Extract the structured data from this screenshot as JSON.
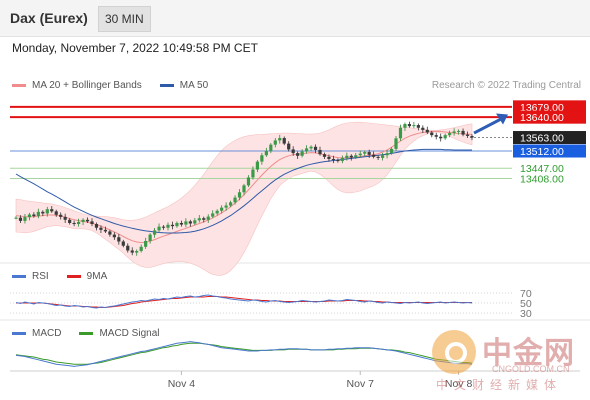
{
  "header": {
    "title": "Dax (Eurex)",
    "timeframe": "30 MIN"
  },
  "datetime": "Monday, November 7, 2022 10:49:58 PM CET",
  "credit": "Research © 2022 Trading Central",
  "legend_main": [
    {
      "label": "MA 20 + Bollinger Bands",
      "color": "#f08c8c"
    },
    {
      "label": "MA 50",
      "color": "#2f5aa8"
    }
  ],
  "legend_rsi": [
    {
      "label": "RSI",
      "color": "#4a78d0"
    },
    {
      "label": "9MA",
      "color": "#e02020"
    }
  ],
  "legend_macd": [
    {
      "label": "MACD",
      "color": "#4a78d0"
    },
    {
      "label": "MACD Signal",
      "color": "#3a9a2a"
    }
  ],
  "watermark": {
    "cn": "中金网",
    "url": "CNGOLD.COM.CN",
    "sub": "中文财经新媒体"
  },
  "chart_data": [
    {
      "type": "candlestick",
      "ylim": [
        13100,
        13720
      ],
      "x_ticks": [
        "Nov 4",
        "Nov 7",
        "Nov 8"
      ],
      "price": [
        13260,
        13248,
        13262,
        13272,
        13266,
        13282,
        13276,
        13292,
        13284,
        13271,
        13263,
        13252,
        13240,
        13236,
        13244,
        13252,
        13246,
        13236,
        13222,
        13214,
        13208,
        13196,
        13186,
        13170,
        13154,
        13136,
        13128,
        13134,
        13150,
        13172,
        13196,
        13212,
        13226,
        13222,
        13233,
        13228,
        13240,
        13234,
        13246,
        13238,
        13250,
        13258,
        13252,
        13264,
        13276,
        13286,
        13298,
        13306,
        13318,
        13336,
        13356,
        13382,
        13412,
        13442,
        13472,
        13496,
        13512,
        13536,
        13552,
        13561,
        13540,
        13518,
        13504,
        13494,
        13510,
        13522,
        13528,
        13516,
        13500,
        13490,
        13482,
        13478,
        13474,
        13486,
        13494,
        13488,
        13496,
        13502,
        13508,
        13498,
        13490,
        13486,
        13496,
        13504,
        13520,
        13560,
        13600,
        13614,
        13606,
        13610,
        13600,
        13592,
        13582,
        13572,
        13566,
        13560,
        13572,
        13580,
        13586,
        13588,
        13574,
        13569,
        13563
      ],
      "ma20": [
        13268,
        13266,
        13264,
        13263,
        13264,
        13266,
        13268,
        13270,
        13270,
        13269,
        13266,
        13262,
        13257,
        13252,
        13249,
        13246,
        13243,
        13239,
        13234,
        13228,
        13221,
        13214,
        13206,
        13198,
        13189,
        13180,
        13173,
        13168,
        13166,
        13167,
        13171,
        13177,
        13184,
        13190,
        13196,
        13202,
        13208,
        13214,
        13220,
        13226,
        13232,
        13238,
        13244,
        13251,
        13259,
        13268,
        13278,
        13289,
        13301,
        13315,
        13330,
        13347,
        13365,
        13384,
        13403,
        13421,
        13438,
        13454,
        13468,
        13480,
        13488,
        13494,
        13498,
        13500,
        13502,
        13504,
        13506,
        13505,
        13502,
        13498,
        13494,
        13490,
        13487,
        13486,
        13486,
        13487,
        13489,
        13491,
        13494,
        13496,
        13498,
        13502,
        13508,
        13516,
        13526,
        13538,
        13550,
        13560,
        13568,
        13574,
        13579,
        13582,
        13584,
        13586,
        13587,
        13586,
        13584,
        13582,
        13580,
        13578,
        13577,
        13576,
        13575
      ],
      "bb_upper": [
        13330,
        13328,
        13325,
        13322,
        13320,
        13318,
        13316,
        13314,
        13312,
        13308,
        13304,
        13298,
        13292,
        13286,
        13280,
        13274,
        13270,
        13267,
        13266,
        13265,
        13264,
        13262,
        13260,
        13256,
        13252,
        13250,
        13250,
        13252,
        13256,
        13262,
        13270,
        13278,
        13286,
        13294,
        13302,
        13312,
        13322,
        13334,
        13348,
        13364,
        13382,
        13402,
        13424,
        13448,
        13472,
        13494,
        13514,
        13530,
        13542,
        13552,
        13560,
        13566,
        13570,
        13572,
        13574,
        13575,
        13576,
        13577,
        13578,
        13579,
        13580,
        13580,
        13579,
        13578,
        13577,
        13576,
        13576,
        13577,
        13580,
        13585,
        13592,
        13600,
        13608,
        13614,
        13618,
        13620,
        13621,
        13621,
        13620,
        13618,
        13616,
        13614,
        13612,
        13610,
        13608,
        13606,
        13604,
        13602,
        13600,
        13598,
        13596,
        13594,
        13592,
        13590,
        13590,
        13592,
        13594,
        13597,
        13600,
        13604,
        13608,
        13612,
        13615
      ],
      "bb_lower": [
        13206,
        13204,
        13203,
        13204,
        13208,
        13214,
        13220,
        13226,
        13228,
        13230,
        13228,
        13226,
        13222,
        13218,
        13218,
        13218,
        13216,
        13211,
        13202,
        13191,
        13178,
        13166,
        13152,
        13140,
        13126,
        13110,
        13096,
        13084,
        13076,
        13072,
        13072,
        13076,
        13082,
        13086,
        13090,
        13092,
        13094,
        13094,
        13092,
        13088,
        13082,
        13074,
        13064,
        13054,
        13046,
        13042,
        13042,
        13048,
        13060,
        13078,
        13100,
        13128,
        13160,
        13196,
        13232,
        13267,
        13300,
        13331,
        13358,
        13381,
        13396,
        13408,
        13417,
        13422,
        13427,
        13432,
        13436,
        13433,
        13424,
        13411,
        13396,
        13380,
        13366,
        13358,
        13354,
        13354,
        13357,
        13361,
        13368,
        13374,
        13380,
        13390,
        13404,
        13422,
        13444,
        13470,
        13496,
        13518,
        13536,
        13550,
        13562,
        13570,
        13576,
        13582,
        13584,
        13580,
        13574,
        13567,
        13560,
        13552,
        13546,
        13540,
        13535
      ],
      "ma50": [
        13425,
        13415,
        13406,
        13397,
        13388,
        13378,
        13368,
        13358,
        13349,
        13340,
        13330,
        13320,
        13310,
        13300,
        13292,
        13284,
        13276,
        13269,
        13262,
        13256,
        13250,
        13244,
        13238,
        13233,
        13228,
        13224,
        13220,
        13216,
        13213,
        13210,
        13208,
        13206,
        13204,
        13203,
        13202,
        13202,
        13202,
        13203,
        13204,
        13206,
        13209,
        13213,
        13218,
        13224,
        13231,
        13239,
        13248,
        13258,
        13268,
        13280,
        13292,
        13305,
        13319,
        13333,
        13348,
        13362,
        13376,
        13390,
        13403,
        13414,
        13424,
        13432,
        13440,
        13446,
        13452,
        13458,
        13462,
        13466,
        13469,
        13472,
        13474,
        13476,
        13478,
        13480,
        13482,
        13484,
        13486,
        13488,
        13490,
        13492,
        13494,
        13496,
        13498,
        13500,
        13503,
        13506,
        13509,
        13512,
        13514,
        13516,
        13517,
        13518,
        13518,
        13518,
        13518,
        13518,
        13517,
        13517,
        13516,
        13516,
        13516,
        13516,
        13516
      ],
      "levels": [
        {
          "value": 13679.0,
          "label": "13679.00",
          "kind": "resistance",
          "color": "#e31313"
        },
        {
          "value": 13640.0,
          "label": "13640.00",
          "kind": "resistance",
          "color": "#e31313"
        },
        {
          "value": 13563.0,
          "label": "13563.00",
          "kind": "last",
          "color": "#222222"
        },
        {
          "value": 13512.0,
          "label": "13512.00",
          "kind": "pivot",
          "color": "#1a5fe0"
        },
        {
          "value": 13447.0,
          "label": "13447.00",
          "kind": "support",
          "color": "#2e9e2e"
        },
        {
          "value": 13408.0,
          "label": "13408.00",
          "kind": "support",
          "color": "#2e9e2e"
        }
      ],
      "forecast_arrow": {
        "from": 13580,
        "to": 13650,
        "direction": "up"
      }
    },
    {
      "type": "line",
      "name": "RSI",
      "ylim": [
        20,
        80
      ],
      "y_ticks": [
        "70",
        "50",
        "30"
      ],
      "rsi": [
        51,
        49,
        52,
        50,
        48,
        51,
        50,
        49,
        47,
        45,
        46,
        44,
        43,
        45,
        44,
        42,
        43,
        41,
        40,
        42,
        41,
        43,
        44,
        46,
        48,
        50,
        52,
        53,
        55,
        54,
        56,
        58,
        57,
        59,
        58,
        60,
        62,
        61,
        63,
        64,
        62,
        63,
        65,
        66,
        64,
        63,
        61,
        60,
        58,
        57,
        56,
        55,
        54,
        56,
        55,
        53,
        52,
        54,
        55,
        53,
        52,
        51,
        52,
        53,
        55,
        54,
        53,
        52,
        53,
        54,
        56,
        55,
        54,
        55,
        57,
        56,
        55,
        53,
        52,
        54,
        53,
        51,
        50,
        52,
        51,
        50,
        49,
        51,
        50,
        51,
        52,
        50,
        49,
        50,
        51,
        52,
        50,
        51,
        52,
        51,
        50,
        51,
        50
      ],
      "ma9": [
        50,
        50,
        50,
        50,
        50,
        50,
        50,
        49,
        48,
        47,
        46,
        45,
        44,
        44,
        44,
        43,
        43,
        42,
        42,
        41,
        41,
        42,
        43,
        44,
        45,
        47,
        49,
        50,
        52,
        53,
        54,
        55,
        56,
        57,
        58,
        59,
        59,
        60,
        61,
        62,
        62,
        62,
        62,
        63,
        63,
        63,
        62,
        62,
        61,
        60,
        59,
        58,
        57,
        56,
        56,
        55,
        55,
        54,
        54,
        54,
        53,
        53,
        53,
        53,
        53,
        53,
        53,
        53,
        53,
        53,
        54,
        54,
        54,
        54,
        55,
        55,
        55,
        55,
        54,
        54,
        53,
        53,
        52,
        52,
        51,
        51,
        51,
        51,
        51,
        51,
        51,
        51,
        51,
        51,
        51,
        51,
        51,
        51,
        51,
        51,
        51,
        51,
        51
      ]
    },
    {
      "type": "line",
      "name": "MACD",
      "macd": [
        -2,
        -3,
        -4,
        -6,
        -8,
        -10,
        -12,
        -14,
        -16,
        -18,
        -19,
        -20,
        -21,
        -22,
        -21,
        -20,
        -19,
        -17,
        -15,
        -13,
        -11,
        -9,
        -7,
        -5,
        -3,
        -1,
        1,
        3,
        5,
        6,
        8,
        10,
        12,
        14,
        16,
        18,
        20,
        21,
        22,
        23,
        22,
        21,
        19,
        18,
        16,
        14,
        12,
        11,
        10,
        9,
        8,
        7,
        6,
        6,
        6,
        7,
        7,
        8,
        8,
        9,
        9,
        10,
        10,
        10,
        9,
        9,
        8,
        8,
        8,
        8,
        9,
        9,
        10,
        10,
        11,
        11,
        12,
        12,
        12,
        12,
        11,
        10,
        9,
        8,
        7,
        6,
        4,
        2,
        0,
        -2,
        -4,
        -6,
        -8,
        -10,
        -12,
        -13,
        -14,
        -15,
        -16,
        -17,
        -17,
        -17,
        -18
      ],
      "signal": [
        -1,
        -2,
        -3,
        -4,
        -5,
        -7,
        -9,
        -10,
        -12,
        -14,
        -15,
        -16,
        -17,
        -18,
        -18,
        -18,
        -18,
        -17,
        -16,
        -15,
        -13,
        -11,
        -9,
        -7,
        -5,
        -3,
        -1,
        1,
        3,
        4,
        6,
        8,
        10,
        12,
        13,
        15,
        16,
        18,
        19,
        20,
        20,
        20,
        19,
        18,
        17,
        16,
        14,
        13,
        12,
        11,
        10,
        9,
        8,
        7,
        7,
        7,
        7,
        7,
        8,
        8,
        8,
        9,
        9,
        9,
        9,
        9,
        8,
        8,
        8,
        8,
        8,
        8,
        9,
        9,
        10,
        10,
        10,
        11,
        11,
        11,
        11,
        10,
        9,
        8,
        8,
        7,
        6,
        4,
        3,
        1,
        -1,
        -3,
        -5,
        -7,
        -9,
        -10,
        -11,
        -12,
        -13,
        -14,
        -15,
        -15,
        -16
      ]
    }
  ]
}
